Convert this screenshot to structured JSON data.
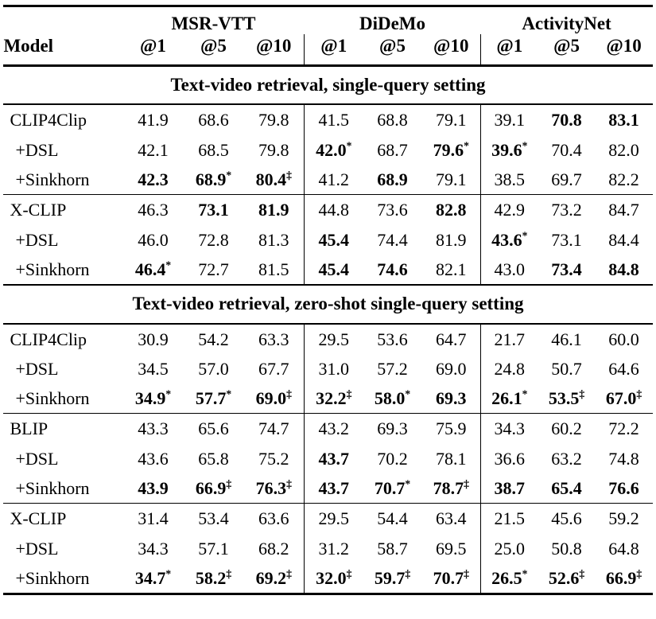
{
  "table": {
    "model_header": "Model",
    "groups": [
      {
        "name": "MSR-VTT",
        "cols": [
          "@1",
          "@5",
          "@10"
        ]
      },
      {
        "name": "DiDeMo",
        "cols": [
          "@1",
          "@5",
          "@10"
        ]
      },
      {
        "name": "ActivityNet",
        "cols": [
          "@1",
          "@5",
          "@10"
        ]
      }
    ],
    "sections": [
      {
        "title": "Text-video retrieval, single-query setting",
        "blocks": [
          {
            "rows": [
              {
                "model": "CLIP4Clip",
                "indent": false,
                "values": [
                  {
                    "v": "41.9"
                  },
                  {
                    "v": "68.6"
                  },
                  {
                    "v": "79.8"
                  },
                  {
                    "v": "41.5"
                  },
                  {
                    "v": "68.8"
                  },
                  {
                    "v": "79.1"
                  },
                  {
                    "v": "39.1"
                  },
                  {
                    "v": "70.8",
                    "b": true
                  },
                  {
                    "v": "83.1",
                    "b": true
                  }
                ]
              },
              {
                "model": "+DSL",
                "indent": true,
                "values": [
                  {
                    "v": "42.1"
                  },
                  {
                    "v": "68.5"
                  },
                  {
                    "v": "79.8"
                  },
                  {
                    "v": "42.0",
                    "b": true,
                    "s": "*"
                  },
                  {
                    "v": "68.7"
                  },
                  {
                    "v": "79.6",
                    "b": true,
                    "s": "*"
                  },
                  {
                    "v": "39.6",
                    "b": true,
                    "s": "*"
                  },
                  {
                    "v": "70.4"
                  },
                  {
                    "v": "82.0"
                  }
                ]
              },
              {
                "model": "+Sinkhorn",
                "indent": true,
                "values": [
                  {
                    "v": "42.3",
                    "b": true
                  },
                  {
                    "v": "68.9",
                    "b": true,
                    "s": "*"
                  },
                  {
                    "v": "80.4",
                    "b": true,
                    "s": "‡"
                  },
                  {
                    "v": "41.2"
                  },
                  {
                    "v": "68.9",
                    "b": true
                  },
                  {
                    "v": "79.1"
                  },
                  {
                    "v": "38.5"
                  },
                  {
                    "v": "69.7"
                  },
                  {
                    "v": "82.2"
                  }
                ]
              }
            ]
          },
          {
            "rows": [
              {
                "model": "X-CLIP",
                "indent": false,
                "values": [
                  {
                    "v": "46.3"
                  },
                  {
                    "v": "73.1",
                    "b": true
                  },
                  {
                    "v": "81.9",
                    "b": true
                  },
                  {
                    "v": "44.8"
                  },
                  {
                    "v": "73.6"
                  },
                  {
                    "v": "82.8",
                    "b": true
                  },
                  {
                    "v": "42.9"
                  },
                  {
                    "v": "73.2"
                  },
                  {
                    "v": "84.7"
                  }
                ]
              },
              {
                "model": "+DSL",
                "indent": true,
                "values": [
                  {
                    "v": "46.0"
                  },
                  {
                    "v": "72.8"
                  },
                  {
                    "v": "81.3"
                  },
                  {
                    "v": "45.4",
                    "b": true
                  },
                  {
                    "v": "74.4"
                  },
                  {
                    "v": "81.9"
                  },
                  {
                    "v": "43.6",
                    "b": true,
                    "s": "*"
                  },
                  {
                    "v": "73.1"
                  },
                  {
                    "v": "84.4"
                  }
                ]
              },
              {
                "model": "+Sinkhorn",
                "indent": true,
                "values": [
                  {
                    "v": "46.4",
                    "b": true,
                    "s": "*"
                  },
                  {
                    "v": "72.7"
                  },
                  {
                    "v": "81.5"
                  },
                  {
                    "v": "45.4",
                    "b": true
                  },
                  {
                    "v": "74.6",
                    "b": true
                  },
                  {
                    "v": "82.1"
                  },
                  {
                    "v": "43.0"
                  },
                  {
                    "v": "73.4",
                    "b": true
                  },
                  {
                    "v": "84.8",
                    "b": true
                  }
                ]
              }
            ]
          }
        ]
      },
      {
        "title": "Text-video retrieval, zero-shot single-query setting",
        "blocks": [
          {
            "rows": [
              {
                "model": "CLIP4Clip",
                "indent": false,
                "values": [
                  {
                    "v": "30.9"
                  },
                  {
                    "v": "54.2"
                  },
                  {
                    "v": "63.3"
                  },
                  {
                    "v": "29.5"
                  },
                  {
                    "v": "53.6"
                  },
                  {
                    "v": "64.7"
                  },
                  {
                    "v": "21.7"
                  },
                  {
                    "v": "46.1"
                  },
                  {
                    "v": "60.0"
                  }
                ]
              },
              {
                "model": "+DSL",
                "indent": true,
                "values": [
                  {
                    "v": "34.5"
                  },
                  {
                    "v": "57.0"
                  },
                  {
                    "v": "67.7"
                  },
                  {
                    "v": "31.0"
                  },
                  {
                    "v": "57.2"
                  },
                  {
                    "v": "69.0"
                  },
                  {
                    "v": "24.8"
                  },
                  {
                    "v": "50.7"
                  },
                  {
                    "v": "64.6"
                  }
                ]
              },
              {
                "model": "+Sinkhorn",
                "indent": true,
                "values": [
                  {
                    "v": "34.9",
                    "b": true,
                    "s": "*"
                  },
                  {
                    "v": "57.7",
                    "b": true,
                    "s": "*"
                  },
                  {
                    "v": "69.0",
                    "b": true,
                    "s": "‡"
                  },
                  {
                    "v": "32.2",
                    "b": true,
                    "s": "‡"
                  },
                  {
                    "v": "58.0",
                    "b": true,
                    "s": "*"
                  },
                  {
                    "v": "69.3",
                    "b": true
                  },
                  {
                    "v": "26.1",
                    "b": true,
                    "s": "*"
                  },
                  {
                    "v": "53.5",
                    "b": true,
                    "s": "‡"
                  },
                  {
                    "v": "67.0",
                    "b": true,
                    "s": "‡"
                  }
                ]
              }
            ]
          },
          {
            "rows": [
              {
                "model": "BLIP",
                "indent": false,
                "values": [
                  {
                    "v": "43.3"
                  },
                  {
                    "v": "65.6"
                  },
                  {
                    "v": "74.7"
                  },
                  {
                    "v": "43.2"
                  },
                  {
                    "v": "69.3"
                  },
                  {
                    "v": "75.9"
                  },
                  {
                    "v": "34.3"
                  },
                  {
                    "v": "60.2"
                  },
                  {
                    "v": "72.2"
                  }
                ]
              },
              {
                "model": "+DSL",
                "indent": true,
                "values": [
                  {
                    "v": "43.6"
                  },
                  {
                    "v": "65.8"
                  },
                  {
                    "v": "75.2"
                  },
                  {
                    "v": "43.7",
                    "b": true
                  },
                  {
                    "v": "70.2"
                  },
                  {
                    "v": "78.1"
                  },
                  {
                    "v": "36.6"
                  },
                  {
                    "v": "63.2"
                  },
                  {
                    "v": "74.8"
                  }
                ]
              },
              {
                "model": "+Sinkhorn",
                "indent": true,
                "values": [
                  {
                    "v": "43.9",
                    "b": true
                  },
                  {
                    "v": "66.9",
                    "b": true,
                    "s": "‡"
                  },
                  {
                    "v": "76.3",
                    "b": true,
                    "s": "‡"
                  },
                  {
                    "v": "43.7",
                    "b": true
                  },
                  {
                    "v": "70.7",
                    "b": true,
                    "s": "*"
                  },
                  {
                    "v": "78.7",
                    "b": true,
                    "s": "‡"
                  },
                  {
                    "v": "38.7",
                    "b": true
                  },
                  {
                    "v": "65.4",
                    "b": true
                  },
                  {
                    "v": "76.6",
                    "b": true
                  }
                ]
              }
            ]
          },
          {
            "rows": [
              {
                "model": "X-CLIP",
                "indent": false,
                "values": [
                  {
                    "v": "31.4"
                  },
                  {
                    "v": "53.4"
                  },
                  {
                    "v": "63.6"
                  },
                  {
                    "v": "29.5"
                  },
                  {
                    "v": "54.4"
                  },
                  {
                    "v": "63.4"
                  },
                  {
                    "v": "21.5"
                  },
                  {
                    "v": "45.6"
                  },
                  {
                    "v": "59.2"
                  }
                ]
              },
              {
                "model": "+DSL",
                "indent": true,
                "values": [
                  {
                    "v": "34.3"
                  },
                  {
                    "v": "57.1"
                  },
                  {
                    "v": "68.2"
                  },
                  {
                    "v": "31.2"
                  },
                  {
                    "v": "58.7"
                  },
                  {
                    "v": "69.5"
                  },
                  {
                    "v": "25.0"
                  },
                  {
                    "v": "50.8"
                  },
                  {
                    "v": "64.8"
                  }
                ]
              },
              {
                "model": "+Sinkhorn",
                "indent": true,
                "values": [
                  {
                    "v": "34.7",
                    "b": true,
                    "s": "*"
                  },
                  {
                    "v": "58.2",
                    "b": true,
                    "s": "‡"
                  },
                  {
                    "v": "69.2",
                    "b": true,
                    "s": "‡"
                  },
                  {
                    "v": "32.0",
                    "b": true,
                    "s": "‡"
                  },
                  {
                    "v": "59.7",
                    "b": true,
                    "s": "‡"
                  },
                  {
                    "v": "70.7",
                    "b": true,
                    "s": "‡"
                  },
                  {
                    "v": "26.5",
                    "b": true,
                    "s": "*"
                  },
                  {
                    "v": "52.6",
                    "b": true,
                    "s": "‡"
                  },
                  {
                    "v": "66.9",
                    "b": true,
                    "s": "‡"
                  }
                ]
              }
            ]
          }
        ]
      }
    ],
    "colors": {
      "text": "#000000",
      "background": "#ffffff",
      "rule": "#000000"
    }
  }
}
